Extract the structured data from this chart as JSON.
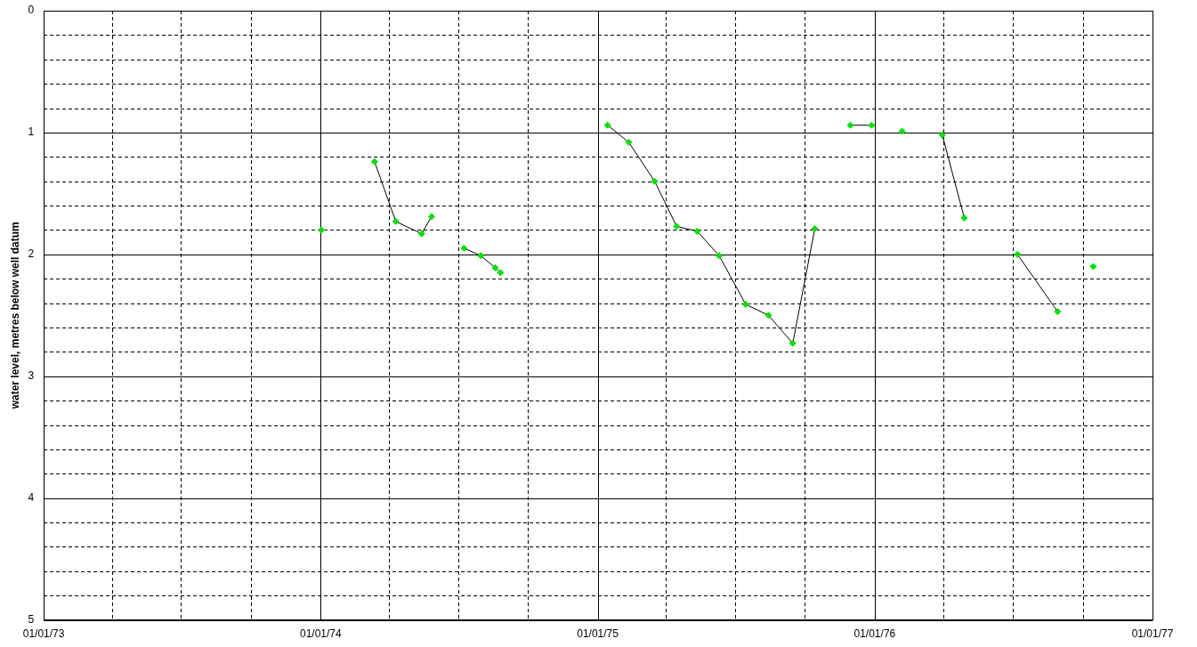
{
  "chart_data": {
    "type": "line",
    "ylabel": "water level, metres below well datum",
    "legend": false,
    "grid": true,
    "marker": "diamond",
    "line_style": "solid",
    "xlim": [
      "1973-01-01",
      "1977-01-01"
    ],
    "xticks": [
      {
        "value": "1973-01-01",
        "label": "01/01/73"
      },
      {
        "value": "1973-04-01",
        "label": null
      },
      {
        "value": "1973-07-01",
        "label": null
      },
      {
        "value": "1973-10-01",
        "label": null
      },
      {
        "value": "1974-01-01",
        "label": "01/01/74"
      },
      {
        "value": "1974-04-01",
        "label": null
      },
      {
        "value": "1974-07-01",
        "label": null
      },
      {
        "value": "1974-10-01",
        "label": null
      },
      {
        "value": "1975-01-01",
        "label": "01/01/75"
      },
      {
        "value": "1975-04-01",
        "label": null
      },
      {
        "value": "1975-07-01",
        "label": null
      },
      {
        "value": "1975-10-01",
        "label": null
      },
      {
        "value": "1976-01-01",
        "label": "01/01/76"
      },
      {
        "value": "1976-04-01",
        "label": null
      },
      {
        "value": "1976-07-01",
        "label": null
      },
      {
        "value": "1976-10-01",
        "label": null
      },
      {
        "value": "1977-01-01",
        "label": "01/01/77"
      }
    ],
    "ylim": [
      5,
      0
    ],
    "yticks": [
      0,
      {
        "value": 0.2,
        "label": null
      },
      {
        "value": 0.4,
        "label": null
      },
      {
        "value": 0.6,
        "label": null
      },
      {
        "value": 0.8,
        "label": null
      },
      1,
      {
        "value": 1.2,
        "label": null
      },
      {
        "value": 1.4,
        "label": null
      },
      {
        "value": 1.6,
        "label": null
      },
      {
        "value": 1.8,
        "label": null
      },
      2,
      {
        "value": 2.2,
        "label": null
      },
      {
        "value": 2.4,
        "label": null
      },
      {
        "value": 2.6,
        "label": null
      },
      {
        "value": 2.8,
        "label": null
      },
      3,
      {
        "value": 3.2,
        "label": null
      },
      {
        "value": 3.4,
        "label": null
      },
      {
        "value": 3.6,
        "label": null
      },
      {
        "value": 3.8,
        "label": null
      },
      4,
      {
        "value": 4.2,
        "label": null
      },
      {
        "value": 4.4,
        "label": null
      },
      {
        "value": 4.6,
        "label": null
      },
      {
        "value": 4.8,
        "label": null
      },
      5
    ],
    "series": [
      {
        "color": "#00e000",
        "x": [
          "1974-01-02",
          "1974-02-05",
          "1974-03-13",
          "1974-04-10",
          "1974-05-14",
          "1974-05-27",
          "1974-06-15",
          "1974-07-09",
          "1974-07-31",
          "1974-08-19",
          "1974-08-26",
          "1974-11-01",
          "1975-01-14",
          "1975-02-11",
          "1975-03-17",
          "1975-04-15",
          "1975-05-12",
          "1975-06-10",
          "1975-07-15",
          "1975-08-14",
          "1975-09-15",
          "1975-10-14",
          "1975-11-05",
          "1975-11-30",
          "1975-12-28",
          "1976-01-15",
          "1976-02-06",
          "1976-03-01",
          "1976-03-30",
          "1976-04-28",
          "1976-06-01",
          "1976-07-07",
          "1976-08-29",
          "1976-09-20",
          "1976-10-15"
        ],
        "values": [
          1.8,
          null,
          1.24,
          1.73,
          1.83,
          1.69,
          null,
          1.95,
          2.01,
          2.11,
          2.15,
          null,
          0.94,
          1.08,
          1.4,
          1.77,
          1.81,
          2.01,
          2.41,
          2.5,
          2.73,
          1.79,
          null,
          0.94,
          0.94,
          null,
          0.99,
          null,
          1.02,
          1.7,
          null,
          2.0,
          2.47,
          null,
          2.1
        ]
      }
    ]
  }
}
